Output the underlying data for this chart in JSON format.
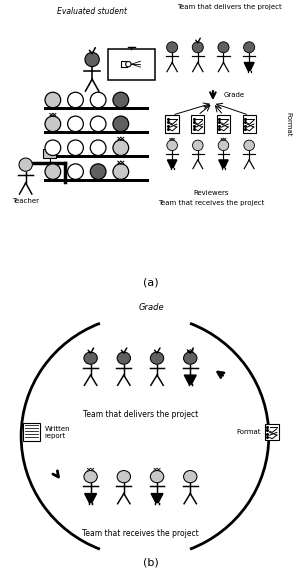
{
  "fig_width": 3.02,
  "fig_height": 5.74,
  "dpi": 100,
  "bg_color": "#ffffff",
  "dark_color": "#606060",
  "light_color": "#c8c8c8",
  "label_a": "(a)",
  "label_b": "(b)",
  "text_eval_student": "Evaluated student",
  "text_teacher": "Teacher",
  "text_team_delivers_a": "Team that delivers the project",
  "text_grade_a": "Grade",
  "text_format_a": "Format",
  "text_reviewers": "Reviewers",
  "text_team_receives_a": "Team that receives the project",
  "text_grade_b": "Grade",
  "text_team_delivers_b": "Team that delivers the project",
  "text_written_report": "Written\nreport",
  "text_format_b": "Format",
  "text_team_receives_b": "Team that receives the project"
}
